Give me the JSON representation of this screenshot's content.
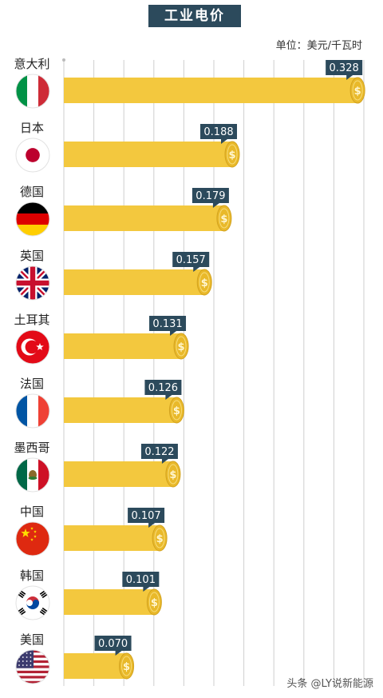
{
  "title": "工业电价",
  "unit_label": "单位：美元/千瓦时",
  "watermark": "头条 @LY说新能源",
  "colors": {
    "bar": "#f3c83e",
    "coin": "#e9b92a",
    "badge": "#2c4a5c",
    "grid": "#cfcfcf"
  },
  "chart_data": {
    "type": "bar",
    "orientation": "horizontal",
    "title": "工业电价",
    "unit": "单位：美元/千瓦时",
    "categories": [
      "意大利",
      "日本",
      "德国",
      "英国",
      "土耳其",
      "法国",
      "墨西哥",
      "中国",
      "韩国",
      "美国"
    ],
    "values": [
      0.328,
      0.188,
      0.179,
      0.157,
      0.131,
      0.126,
      0.122,
      0.107,
      0.101,
      0.07
    ],
    "value_labels": [
      "0.328",
      "0.188",
      "0.179",
      "0.157",
      "0.131",
      "0.126",
      "0.122",
      "0.107",
      "0.101",
      "0.070"
    ],
    "flag_icons": [
      "italy-flag-icon",
      "japan-flag-icon",
      "germany-flag-icon",
      "uk-flag-icon",
      "turkey-flag-icon",
      "france-flag-icon",
      "mexico-flag-icon",
      "china-flag-icon",
      "south-korea-flag-icon",
      "usa-flag-icon"
    ],
    "xlim": [
      0,
      0.335
    ],
    "grid": true,
    "legend": "none"
  }
}
